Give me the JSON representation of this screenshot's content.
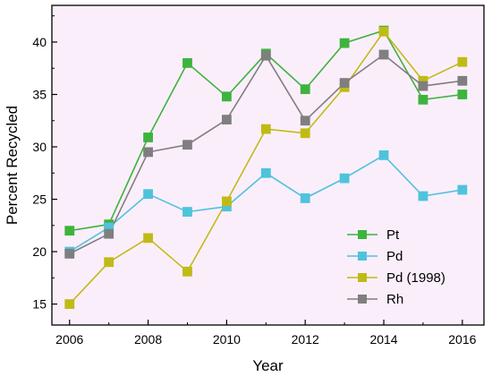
{
  "chart_data": {
    "type": "line",
    "xlabel": "Year",
    "ylabel": "Percent Recycled",
    "xlim": [
      2005.55,
      2016.55
    ],
    "ylim": [
      13,
      43.5
    ],
    "x_ticks": [
      2006,
      2008,
      2010,
      2012,
      2014,
      2016
    ],
    "y_ticks": [
      15,
      20,
      25,
      30,
      35,
      40
    ],
    "background": "#fbeefb",
    "grid": false,
    "legend_position": "bottom-right",
    "x": [
      2006,
      2007,
      2008,
      2009,
      2010,
      2011,
      2012,
      2013,
      2014,
      2015,
      2016
    ],
    "series": [
      {
        "name": "Pt",
        "color": "#3db43d",
        "values": [
          22,
          22.6,
          30.9,
          38,
          34.8,
          38.9,
          35.5,
          39.9,
          41.1,
          34.5,
          35
        ]
      },
      {
        "name": "Pd",
        "color": "#4fc3dc",
        "values": [
          20,
          22.3,
          25.5,
          23.8,
          24.3,
          27.5,
          25.1,
          27,
          29.2,
          25.3,
          25.9
        ]
      },
      {
        "name": "Pd (1998)",
        "color": "#bfbb16",
        "values": [
          15,
          19,
          21.3,
          18.1,
          24.8,
          31.7,
          31.3,
          35.7,
          41,
          36.3,
          38.1
        ]
      },
      {
        "name": "Rh",
        "color": "#7f7f7f",
        "values": [
          19.8,
          21.7,
          29.5,
          30.2,
          32.6,
          38.7,
          32.5,
          36.1,
          38.8,
          35.8,
          36.3
        ]
      }
    ]
  }
}
